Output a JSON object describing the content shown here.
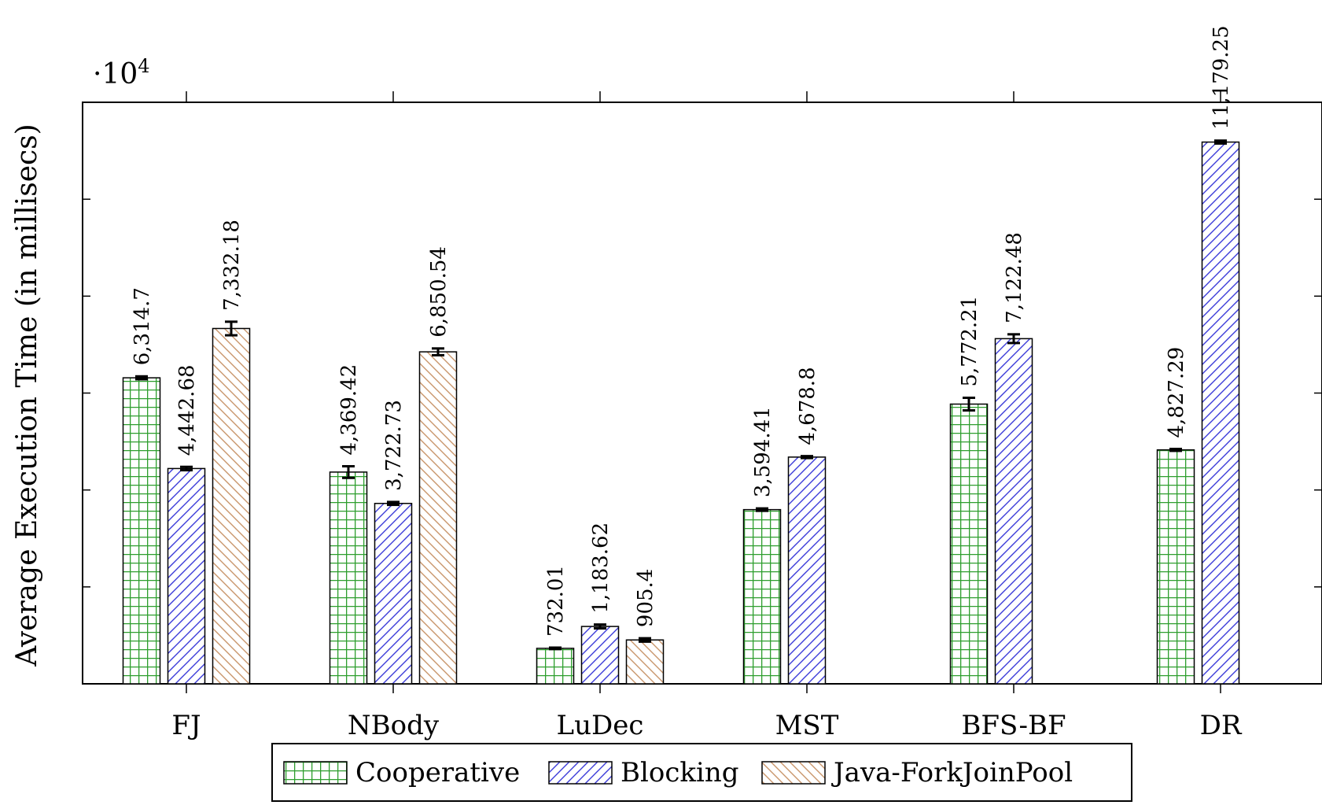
{
  "chart_data": {
    "type": "bar",
    "title": "",
    "xlabel": "",
    "ylabel": "Average Execution Time (in millisecs)",
    "y_multiplier_label": "·10",
    "y_multiplier_exp": "4",
    "ylim": [
      0,
      12000
    ],
    "grid": false,
    "legend_position": "bottom-center",
    "categories": [
      "FJ",
      "NBody",
      "LuDec",
      "MST",
      "BFS-BF",
      "DR"
    ],
    "series": [
      {
        "name": "Cooperative",
        "color": "#2e9e2e",
        "pattern": "grid",
        "values": [
          6314.7,
          4369.42,
          732.01,
          3594.41,
          5772.21,
          4827.29
        ],
        "labels": [
          "6,314.7",
          "4,369.42",
          "732.01",
          "3,594.41",
          "5,772.21",
          "4,827.29"
        ],
        "errors": [
          30,
          120,
          15,
          25,
          130,
          20
        ]
      },
      {
        "name": "Blocking",
        "color": "#3b3bd9",
        "pattern": "diag-right",
        "values": [
          4442.68,
          3722.73,
          1183.62,
          4678.8,
          7122.48,
          11179.25
        ],
        "labels": [
          "4,442.68",
          "3,722.73",
          "1,183.62",
          "4,678.8",
          "7,122.48",
          "11,179.25"
        ],
        "errors": [
          35,
          30,
          40,
          20,
          90,
          30
        ]
      },
      {
        "name": "Java-ForkJoinPool",
        "color": "#c8956a",
        "pattern": "diag-left",
        "values": [
          7332.18,
          6850.54,
          905.4,
          null,
          null,
          null
        ],
        "labels": [
          "7,332.18",
          "6,850.54",
          "905.4",
          "",
          "",
          ""
        ],
        "errors": [
          140,
          70,
          35,
          0,
          0,
          0
        ]
      }
    ]
  }
}
